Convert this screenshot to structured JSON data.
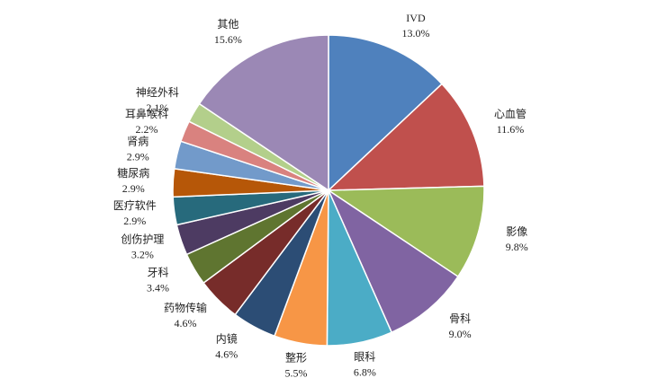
{
  "chart_data": {
    "type": "pie",
    "categories": [
      "IVD",
      "心血管",
      "影像",
      "骨科",
      "眼科",
      "整形",
      "内镜",
      "药物传输",
      "牙科",
      "创伤护理",
      "医疗软件",
      "糖尿病",
      "肾病",
      "耳鼻喉科",
      "神经外科",
      "其他"
    ],
    "values": [
      13.0,
      11.6,
      9.8,
      9.0,
      6.8,
      5.5,
      4.6,
      4.6,
      3.4,
      3.2,
      2.9,
      2.9,
      2.9,
      2.2,
      2.1,
      15.6
    ],
    "value_labels": [
      "13.0%",
      "11.6%",
      "9.8%",
      "9.0%",
      "6.8%",
      "5.5%",
      "4.6%",
      "4.6%",
      "3.4%",
      "3.2%",
      "2.9%",
      "2.9%",
      "2.9%",
      "2.2%",
      "2.1%",
      "15.6%"
    ],
    "colors": [
      "#4F81BD",
      "#C0504D",
      "#9BBB59",
      "#8064A2",
      "#4BACC6",
      "#F79646",
      "#2C4D75",
      "#772C2A",
      "#5F7530",
      "#4D3B62",
      "#276A7C",
      "#B65708",
      "#729ACA",
      "#D9827F",
      "#B3CF8B",
      "#9B88B5"
    ]
  }
}
